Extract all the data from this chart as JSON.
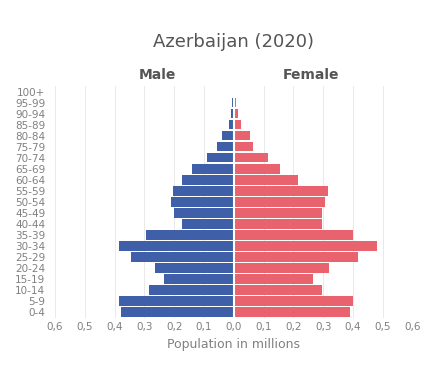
{
  "title": "Azerbaijan (2020)",
  "age_groups": [
    "0-4",
    "5-9",
    "10-14",
    "15-19",
    "20-24",
    "25-29",
    "30-34",
    "35-39",
    "40-44",
    "45-49",
    "50-54",
    "55-59",
    "60-64",
    "65-69",
    "70-74",
    "75-79",
    "80-84",
    "85-89",
    "90-94",
    "95-99",
    "100+"
  ],
  "male": [
    0.38,
    0.385,
    0.285,
    0.235,
    0.265,
    0.345,
    0.385,
    0.295,
    0.175,
    0.2,
    0.21,
    0.205,
    0.175,
    0.14,
    0.09,
    0.055,
    0.04,
    0.015,
    0.01,
    0.005,
    0.002
  ],
  "female": [
    0.39,
    0.4,
    0.295,
    0.265,
    0.32,
    0.415,
    0.48,
    0.4,
    0.295,
    0.295,
    0.305,
    0.315,
    0.215,
    0.155,
    0.115,
    0.065,
    0.055,
    0.025,
    0.015,
    0.008,
    0.004
  ],
  "male_color": "#3f5fa8",
  "female_color": "#e8636e",
  "xlabel": "Population in millions",
  "male_label": "Male",
  "female_label": "Female",
  "xlim": 0.6,
  "background_color": "#ffffff",
  "title_fontsize": 13,
  "label_fontsize": 9,
  "tick_fontsize": 7.5
}
